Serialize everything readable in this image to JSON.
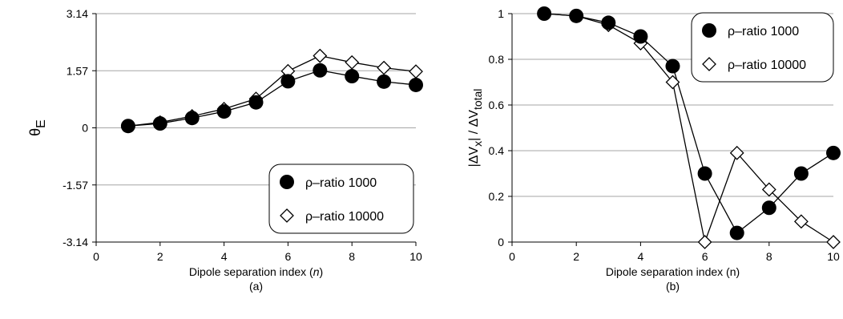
{
  "chart_data": [
    {
      "type": "line",
      "panel_label": "(a)",
      "xlabel_prefix": "Dipole separation index (",
      "xlabel_var": "n",
      "xlabel_suffix": ")",
      "ylabel_main": "θ",
      "ylabel_sub": "E",
      "xlim": [
        0,
        10
      ],
      "ylim": [
        -3.14,
        3.14
      ],
      "xticks": [
        0,
        2,
        4,
        6,
        8,
        10
      ],
      "yticks": [
        -3.14,
        -1.57,
        0,
        1.57,
        3.14
      ],
      "ytick_labels": [
        "-3.14",
        "-1.57",
        "0",
        "1.57",
        "3.14"
      ],
      "grid": true,
      "legend_placement": "bottom-right",
      "x": [
        1,
        2,
        3,
        4,
        5,
        6,
        7,
        8,
        9,
        10
      ],
      "series": [
        {
          "name": "ρ–ratio 1000",
          "marker": "filled-circle",
          "values": [
            0.05,
            0.12,
            0.27,
            0.45,
            0.7,
            1.28,
            1.58,
            1.42,
            1.27,
            1.18
          ]
        },
        {
          "name": "ρ–ratio 10000",
          "marker": "open-diamond",
          "values": [
            0.05,
            0.15,
            0.32,
            0.52,
            0.8,
            1.56,
            1.98,
            1.8,
            1.65,
            1.55
          ]
        }
      ]
    },
    {
      "type": "line",
      "panel_label": "(b)",
      "xlabel_prefix": "Dipole separation index (n)",
      "xlabel_var": "",
      "xlabel_suffix": "",
      "ylabel_parts": [
        "|ΔV",
        "x",
        "| / ΔV",
        "total"
      ],
      "xlim": [
        0,
        10
      ],
      "ylim": [
        0,
        1
      ],
      "xticks": [
        0,
        2,
        4,
        6,
        8,
        10
      ],
      "yticks": [
        0,
        0.2,
        0.4,
        0.6,
        0.8,
        1
      ],
      "ytick_labels": [
        "0",
        "0.2",
        "0.4",
        "0.6",
        "0.8",
        "1"
      ],
      "grid": true,
      "legend_placement": "top-right",
      "x": [
        1,
        2,
        3,
        4,
        5,
        6,
        7,
        8,
        9,
        10
      ],
      "series": [
        {
          "name": "ρ–ratio 1000",
          "marker": "filled-circle",
          "values": [
            1.0,
            0.99,
            0.96,
            0.9,
            0.77,
            0.3,
            0.04,
            0.15,
            0.3,
            0.39
          ]
        },
        {
          "name": "ρ–ratio 10000",
          "marker": "open-diamond",
          "values": [
            1.0,
            0.99,
            0.95,
            0.87,
            0.7,
            0.0,
            0.39,
            0.23,
            0.09,
            0.0
          ]
        }
      ]
    }
  ]
}
